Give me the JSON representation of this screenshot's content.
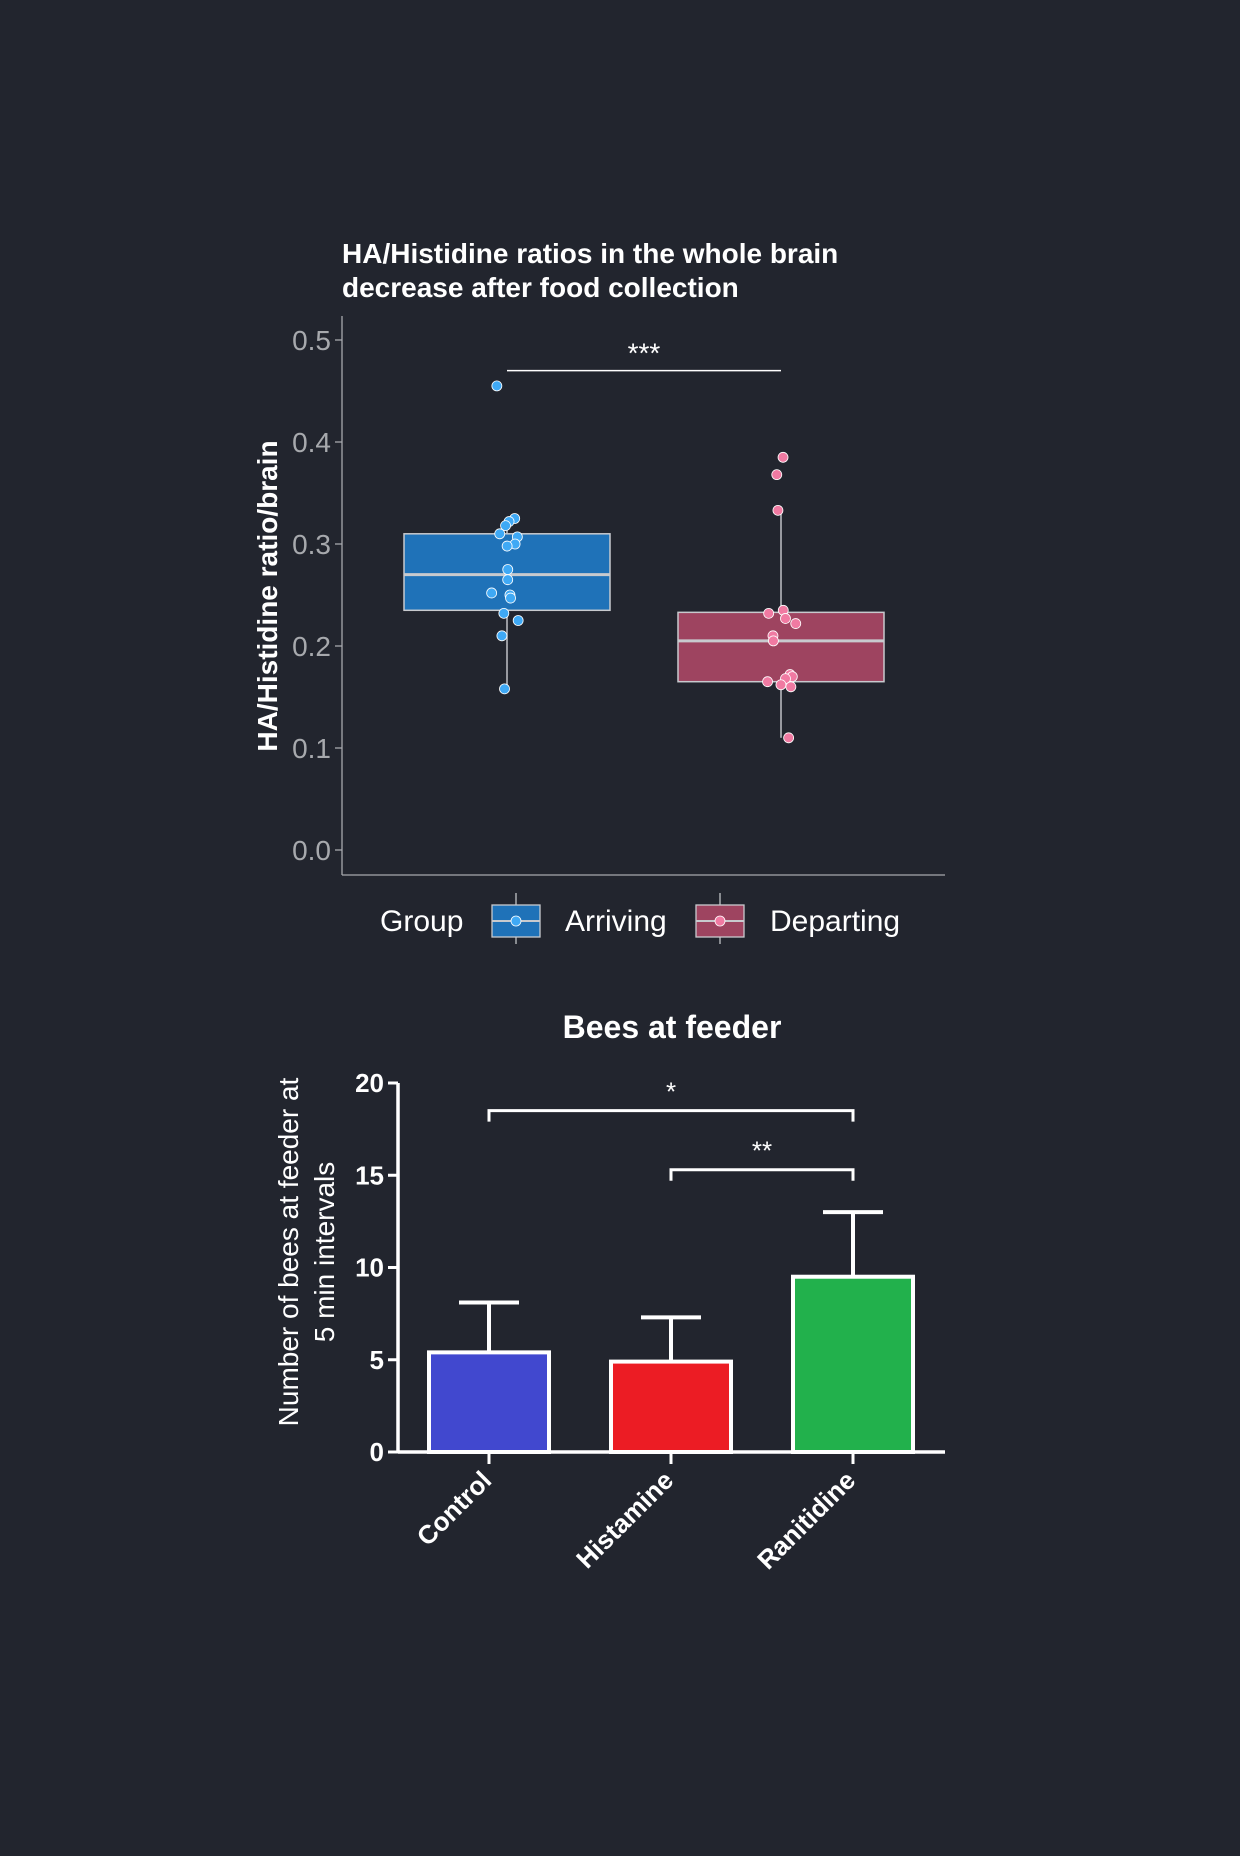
{
  "chart_data": [
    {
      "type": "box",
      "title": "HA/Histidine ratios in the whole brain\ndecrease after food collection",
      "title_lines": [
        "HA/Histidine ratios in the whole brain",
        "decrease after food collection"
      ],
      "xlabel": "",
      "ylabel": "HA/Histidine ratio/brain",
      "ylim": [
        0,
        0.52
      ],
      "yticks": [
        0.0,
        0.1,
        0.2,
        0.3,
        0.4,
        0.5
      ],
      "ytick_labels": [
        "0.0",
        "0.1",
        "0.2",
        "0.3",
        "0.4",
        "0.5"
      ],
      "grid": false,
      "legend": {
        "title": "Group",
        "position": "bottom",
        "entries": [
          "Arriving",
          "Departing"
        ]
      },
      "significance": [
        {
          "between": [
            "Arriving",
            "Departing"
          ],
          "label": "***",
          "y": 0.47
        }
      ],
      "series": [
        {
          "name": "Arriving",
          "color": "#1f72b8",
          "point_color": "#3fa9f5",
          "box": {
            "q1": 0.235,
            "median": 0.27,
            "q3": 0.31,
            "whisker_low": 0.16,
            "whisker_high": 0.325
          },
          "points": [
            0.455,
            0.325,
            0.322,
            0.318,
            0.31,
            0.307,
            0.3,
            0.298,
            0.275,
            0.265,
            0.252,
            0.25,
            0.247,
            0.232,
            0.225,
            0.21,
            0.158
          ]
        },
        {
          "name": "Departing",
          "color": "#9e4460",
          "point_color": "#f07aa2",
          "box": {
            "q1": 0.165,
            "median": 0.205,
            "q3": 0.233,
            "whisker_low": 0.11,
            "whisker_high": 0.333
          },
          "points": [
            0.385,
            0.368,
            0.333,
            0.235,
            0.232,
            0.227,
            0.222,
            0.21,
            0.205,
            0.172,
            0.17,
            0.168,
            0.165,
            0.162,
            0.16,
            0.11
          ]
        }
      ]
    },
    {
      "type": "bar",
      "title": "Bees at feeder",
      "xlabel": "",
      "ylabel_lines": [
        "Number of bees at feeder at",
        "5 min intervals"
      ],
      "ylim": [
        0,
        20
      ],
      "yticks": [
        0,
        5,
        10,
        15,
        20
      ],
      "ytick_labels": [
        "0",
        "5",
        "10",
        "15",
        "20"
      ],
      "grid": false,
      "categories": [
        "Control",
        "Histamine",
        "Ranitidine"
      ],
      "values": [
        5.4,
        4.9,
        9.5
      ],
      "errors": [
        2.7,
        2.4,
        3.5
      ],
      "colors": [
        "#4148cf",
        "#ec1c24",
        "#22b14c"
      ],
      "significance": [
        {
          "between": [
            "Control",
            "Ranitidine"
          ],
          "label": "*",
          "y": 18.5
        },
        {
          "between": [
            "Histamine",
            "Ranitidine"
          ],
          "label": "**",
          "y": 15.3
        }
      ]
    }
  ]
}
